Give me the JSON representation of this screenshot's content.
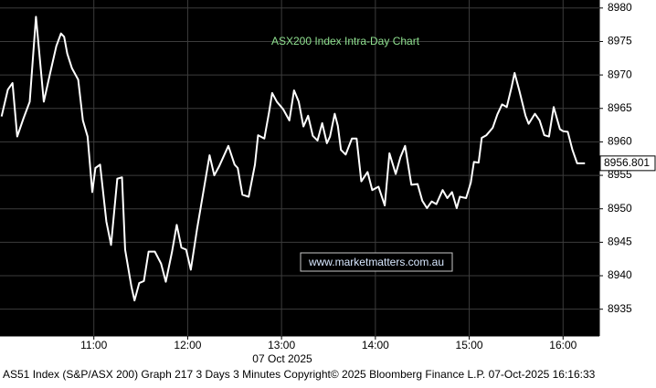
{
  "chart_data": {
    "type": "line",
    "title": "ASX200 Index Intra-Day Chart",
    "watermark": "www.marketmatters.com.au",
    "date_label": "07 Oct 2025",
    "footer": "AS51 Index (S&P/ASX 200) Graph 217 3 Days 3 Minutes Copyright© 2025 Bloomberg Finance L.P. 07-Oct-2025 16:16:33",
    "color": "#ffffff",
    "grid": true,
    "last_value": 8956.801,
    "x": [
      601,
      605,
      608,
      611,
      615,
      619,
      623,
      628,
      632,
      636,
      639,
      641,
      643,
      646,
      650,
      653,
      656,
      659,
      661,
      664,
      668,
      671,
      675,
      678,
      680,
      684,
      686,
      689,
      692,
      695,
      699,
      703,
      706,
      710,
      713,
      716,
      719,
      722,
      726,
      730,
      734,
      737,
      740,
      746,
      750,
      752,
      755,
      759,
      763,
      765,
      769,
      772,
      774,
      777,
      781,
      785,
      788,
      791,
      794,
      797,
      800,
      803,
      806,
      809,
      811,
      814,
      816,
      818,
      821,
      825,
      828,
      831,
      835,
      838,
      842,
      846,
      849,
      853,
      856,
      859,
      863,
      867,
      870,
      873,
      876,
      879,
      883,
      886,
      889,
      892,
      894,
      898,
      901,
      903,
      906,
      908,
      911,
      915,
      918,
      921,
      924,
      927,
      929,
      932,
      936,
      938,
      942,
      945,
      948,
      951,
      954,
      958,
      960,
      963,
      966,
      969,
      974
    ],
    "values": [
      8963.8,
      8967.8,
      8968.8,
      8960.8,
      8963.5,
      8966.0,
      8978.7,
      8966.0,
      8970.2,
      8974.3,
      8976.2,
      8975.7,
      8973.2,
      8971.0,
      8969.3,
      8963.2,
      8960.8,
      8952.5,
      8956.1,
      8956.6,
      8948.1,
      8944.6,
      8954.5,
      8954.7,
      8943.9,
      8938.4,
      8936.3,
      8938.9,
      8939.2,
      8943.6,
      8943.6,
      8941.8,
      8939.1,
      8943.6,
      8947.6,
      8944.2,
      8943.9,
      8940.9,
      8947.0,
      8952.5,
      8958.0,
      8955.0,
      8956.3,
      8959.4,
      8956.6,
      8956.1,
      8952.1,
      8951.8,
      8956.6,
      8961.0,
      8960.5,
      8964.4,
      8967.3,
      8966.0,
      8964.9,
      8963.2,
      8967.7,
      8966.0,
      8962.3,
      8963.9,
      8960.9,
      8960.2,
      8962.8,
      8959.8,
      8960.8,
      8964.2,
      8962.4,
      8958.8,
      8958.1,
      8960.5,
      8960.5,
      8954.1,
      8955.5,
      8952.8,
      8953.3,
      8950.5,
      8958.3,
      8955.2,
      8957.7,
      8959.4,
      8953.6,
      8953.7,
      8951.2,
      8950.1,
      8951.1,
      8950.7,
      8952.8,
      8951.6,
      8952.5,
      8950.1,
      8951.8,
      8951.6,
      8953.9,
      8957.0,
      8956.9,
      8960.6,
      8961.0,
      8962.1,
      8964.1,
      8965.6,
      8965.2,
      8968.1,
      8970.3,
      8967.7,
      8963.9,
      8962.7,
      8964.2,
      8963.2,
      8961.0,
      8960.8,
      8965.2,
      8961.9,
      8961.6,
      8961.5,
      8958.8,
      8956.8,
      8956.8
    ],
    "xlim": [
      600,
      983.2
    ],
    "xticks": [
      {
        "value": 660,
        "label": "11:00"
      },
      {
        "value": 720,
        "label": "12:00"
      },
      {
        "value": 780,
        "label": "13:00"
      },
      {
        "value": 840,
        "label": "14:00"
      },
      {
        "value": 900,
        "label": "15:00"
      },
      {
        "value": 960,
        "label": "16:00"
      }
    ],
    "ylim": [
      8931,
      8981.2
    ],
    "yticks": [
      8935,
      8940,
      8945,
      8950,
      8955,
      8960,
      8965,
      8970,
      8975,
      8980
    ]
  }
}
